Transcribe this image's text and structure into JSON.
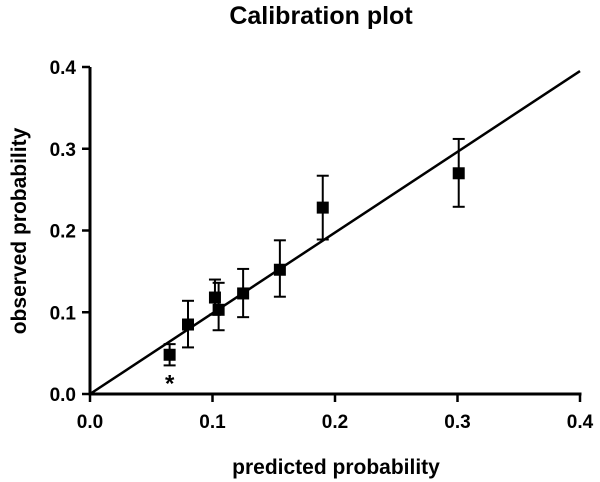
{
  "chart_data": {
    "type": "scatter",
    "title": "Calibration plot",
    "xlabel": "predicted probability",
    "ylabel": "observed probability",
    "xlim": [
      0.0,
      0.4
    ],
    "ylim": [
      0.0,
      0.4
    ],
    "x_ticks": [
      "0.0",
      "0.1",
      "0.2",
      "0.3",
      "0.4"
    ],
    "y_ticks": [
      "0.0",
      "0.1",
      "0.2",
      "0.3",
      "0.4"
    ],
    "x_tick_values": [
      0.0,
      0.1,
      0.2,
      0.3,
      0.4
    ],
    "y_tick_values": [
      0.0,
      0.1,
      0.2,
      0.3,
      0.4
    ],
    "grid": false,
    "legend": "none",
    "reference_line": {
      "x": [
        0.0,
        0.4
      ],
      "y": [
        0.0,
        0.395
      ]
    },
    "points": [
      {
        "x": 0.065,
        "y": 0.048,
        "lower": 0.035,
        "upper": 0.061
      },
      {
        "x": 0.08,
        "y": 0.085,
        "lower": 0.057,
        "upper": 0.114
      },
      {
        "x": 0.102,
        "y": 0.118,
        "lower": 0.097,
        "upper": 0.14
      },
      {
        "x": 0.105,
        "y": 0.103,
        "lower": 0.078,
        "upper": 0.136
      },
      {
        "x": 0.125,
        "y": 0.123,
        "lower": 0.094,
        "upper": 0.153
      },
      {
        "x": 0.155,
        "y": 0.152,
        "lower": 0.119,
        "upper": 0.188
      },
      {
        "x": 0.19,
        "y": 0.228,
        "lower": 0.189,
        "upper": 0.267
      },
      {
        "x": 0.301,
        "y": 0.27,
        "lower": 0.229,
        "upper": 0.312
      }
    ],
    "annotations": [
      {
        "text": "*",
        "x": 0.065,
        "y": 0.015
      }
    ]
  }
}
